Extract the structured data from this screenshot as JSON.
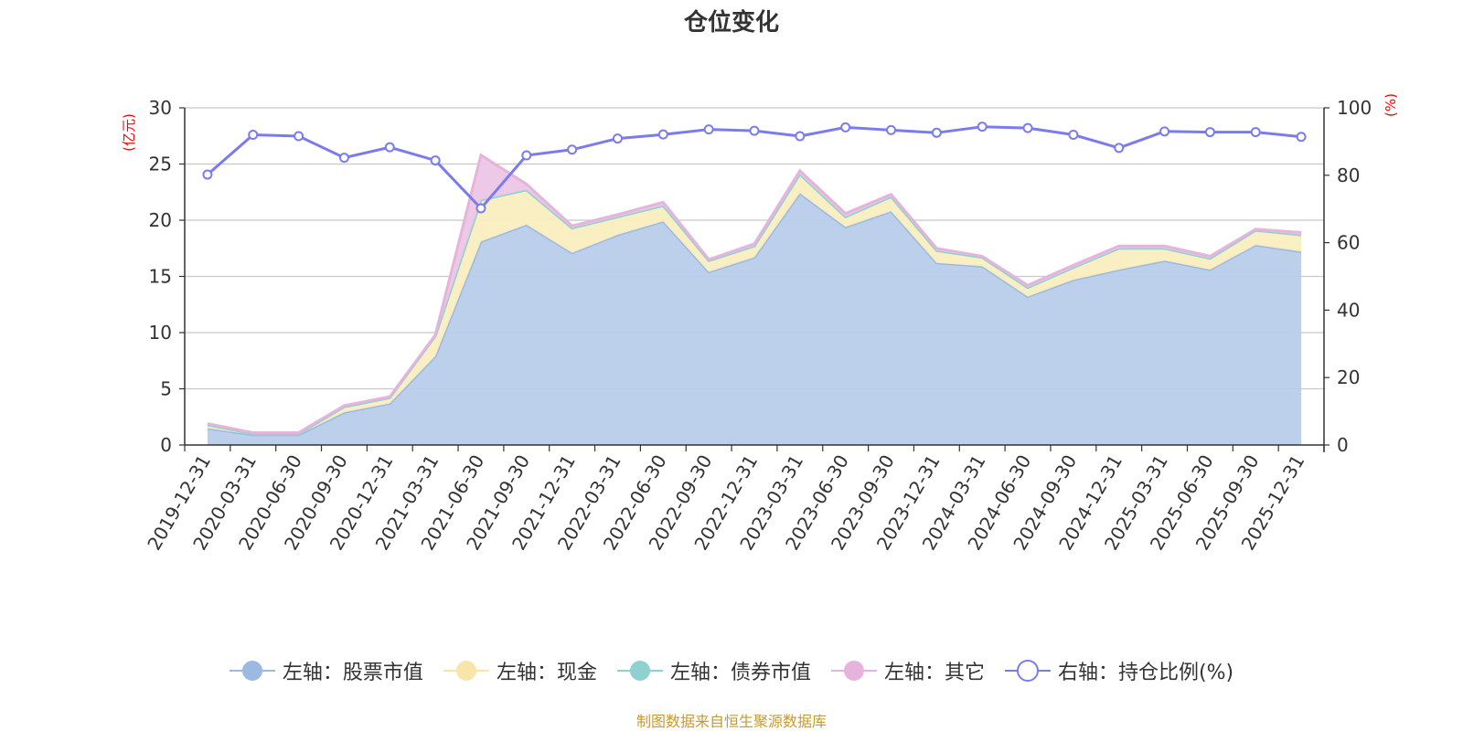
{
  "colors": {
    "stock": "#9cb9e2",
    "stock_fill": "#b8cdeb",
    "cash": "#f8e5a8",
    "cash_fill": "#faeebf",
    "bond": "#8fd1d0",
    "other": "#e5b4dc",
    "other_fill": "#edc6e6",
    "ratio": "#7a7cee",
    "grid": "#c8c8c8",
    "axis": "#333333",
    "unit": "#ff0000",
    "source": "#c79a2e"
  },
  "chart_data": {
    "type": "area",
    "title": "仓位变化",
    "left_axis_unit": "(亿元)",
    "right_axis_unit": "(%)",
    "left_ylim": [
      0,
      30
    ],
    "left_ticks": [
      0,
      5,
      10,
      15,
      20,
      25,
      30
    ],
    "right_ylim": [
      0,
      100
    ],
    "right_ticks": [
      0,
      20,
      40,
      60,
      80,
      100
    ],
    "categories": [
      "2019-12-31",
      "2020-03-31",
      "2020-06-30",
      "2020-09-30",
      "2020-12-31",
      "2021-03-31",
      "2021-06-30",
      "2021-09-30",
      "2021-12-31",
      "2022-03-31",
      "2022-06-30",
      "2022-09-30",
      "2022-12-31",
      "2023-03-31",
      "2023-06-30",
      "2023-09-30",
      "2023-12-31",
      "2024-03-31",
      "2024-06-30",
      "2024-09-30",
      "2024-12-31",
      "2025-03-31",
      "2025-06-30",
      "2025-09-30",
      "2025-12-31"
    ],
    "series": [
      {
        "name": "左轴：股票市值",
        "axis": "left",
        "stack": true,
        "values": [
          1.5,
          0.9,
          0.9,
          2.9,
          3.7,
          7.9,
          18.1,
          19.6,
          17.1,
          18.7,
          19.9,
          15.4,
          16.7,
          22.4,
          19.4,
          20.8,
          16.2,
          15.9,
          13.2,
          14.7,
          15.6,
          16.4,
          15.6,
          17.8,
          17.2
        ]
      },
      {
        "name": "左轴：现金",
        "axis": "left",
        "stack": true,
        "values": [
          0.3,
          0.1,
          0.1,
          0.5,
          0.5,
          1.8,
          3.7,
          3.1,
          2.2,
          1.6,
          1.4,
          1.0,
          1.0,
          1.7,
          0.9,
          1.3,
          1.1,
          0.8,
          0.8,
          1.1,
          1.9,
          1.1,
          1.0,
          1.3,
          1.5
        ]
      },
      {
        "name": "左轴：债券市值",
        "axis": "left",
        "stack": true,
        "values": [
          0,
          0,
          0,
          0,
          0,
          0,
          0,
          0,
          0,
          0,
          0,
          0,
          0,
          0,
          0,
          0,
          0,
          0,
          0,
          0,
          0,
          0,
          0,
          0,
          0
        ]
      },
      {
        "name": "左轴：其它",
        "axis": "left",
        "stack": true,
        "values": [
          0.1,
          0.1,
          0.1,
          0.1,
          0.1,
          0.1,
          4.0,
          0.5,
          0.2,
          0.2,
          0.3,
          0.1,
          0.2,
          0.3,
          0.3,
          0.2,
          0.2,
          0.1,
          0.2,
          0.2,
          0.2,
          0.2,
          0.2,
          0.1,
          0.2
        ]
      },
      {
        "name": "右轴：持仓比例(%)",
        "axis": "right",
        "stack": false,
        "values": [
          80.2,
          92.0,
          91.6,
          85.2,
          88.3,
          84.4,
          70.2,
          85.9,
          87.6,
          90.9,
          92.1,
          93.6,
          93.2,
          91.6,
          94.2,
          93.4,
          92.6,
          94.4,
          94.0,
          92.0,
          88.1,
          93.0,
          92.8,
          92.8,
          91.4
        ]
      }
    ]
  },
  "legend": {
    "items": [
      {
        "label": "左轴：股票市值"
      },
      {
        "label": "左轴：现金"
      },
      {
        "label": "左轴：债券市值"
      },
      {
        "label": "左轴：其它"
      },
      {
        "label": "右轴：持仓比例(%)"
      }
    ]
  },
  "source": "制图数据来自恒生聚源数据库"
}
